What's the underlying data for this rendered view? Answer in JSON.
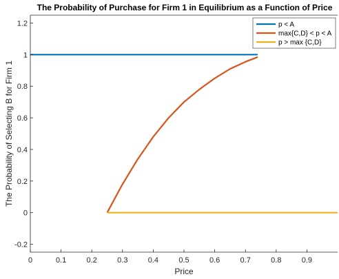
{
  "chart_data": {
    "type": "line",
    "title": "The Probability of Purchase for Firm 1 in Equilibrium as a Function of Price",
    "xlabel": "Price",
    "ylabel": "The Probability of Selecting B for Firm 1",
    "xlim": [
      0,
      1
    ],
    "ylim": [
      -0.25,
      1.25
    ],
    "xticks": [
      0,
      0.1,
      0.2,
      0.3,
      0.4,
      0.5,
      0.6,
      0.7,
      0.8,
      0.9
    ],
    "xtick_labels": [
      "0",
      "0.1",
      "0.2",
      "0.3",
      "0.4",
      "0.5",
      "0.6",
      "0.7",
      "0.8",
      "0.9"
    ],
    "yticks": [
      -0.2,
      0,
      0.2,
      0.4,
      0.6,
      0.8,
      1,
      1.2
    ],
    "ytick_labels": [
      "-0.2",
      "0",
      "0.2",
      "0.4",
      "0.6",
      "0.8",
      "1",
      "1.2"
    ],
    "grid": false,
    "legend_position": "top-right",
    "series": [
      {
        "name": "p < A",
        "color": "#0072bd",
        "x": [
          0,
          0.74
        ],
        "y": [
          1,
          1
        ]
      },
      {
        "name": "max{C,D} < p < A",
        "color": "#d95319",
        "x": [
          0.25,
          0.3,
          0.35,
          0.4,
          0.45,
          0.5,
          0.55,
          0.6,
          0.65,
          0.7,
          0.74
        ],
        "y": [
          0,
          0.18,
          0.34,
          0.48,
          0.6,
          0.7,
          0.78,
          0.85,
          0.91,
          0.955,
          0.985
        ]
      },
      {
        "name": "p > max {C,D}",
        "color": "#edb120",
        "x": [
          0.25,
          1
        ],
        "y": [
          0,
          0
        ]
      }
    ]
  }
}
